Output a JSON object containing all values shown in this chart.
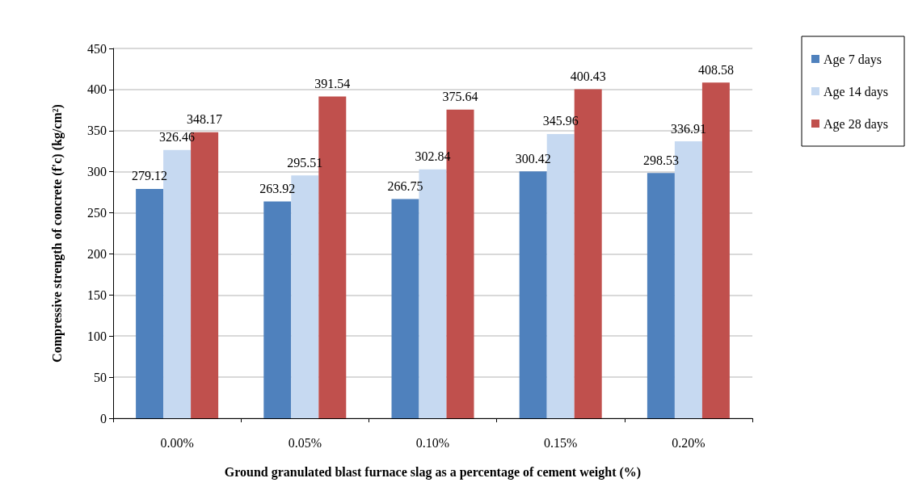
{
  "chart_data": {
    "type": "bar",
    "xlabel": "Ground granulated blast furnace slag as a percentage of cement weight (%)",
    "ylabel": "Compressive strength of concrete (f'c) (kg/cm²)",
    "categories": [
      "0.00%",
      "0.05%",
      "0.10%",
      "0.15%",
      "0.20%"
    ],
    "series": [
      {
        "name": "Age 7 days",
        "color": "#4f81bd",
        "values": [
          279.12,
          263.92,
          266.75,
          300.42,
          298.53
        ]
      },
      {
        "name": "Age 14 days",
        "color": "#c6d9f1",
        "values": [
          326.46,
          295.51,
          302.84,
          345.96,
          336.91
        ]
      },
      {
        "name": "Age 28 days",
        "color": "#c0504d",
        "values": [
          348.17,
          391.54,
          375.64,
          400.43,
          408.58
        ]
      }
    ],
    "ylim": [
      0,
      450
    ],
    "yticks": [
      0,
      50,
      100,
      150,
      200,
      250,
      300,
      350,
      400,
      450
    ],
    "grid": "y",
    "legend": "right",
    "data_labels": true
  }
}
